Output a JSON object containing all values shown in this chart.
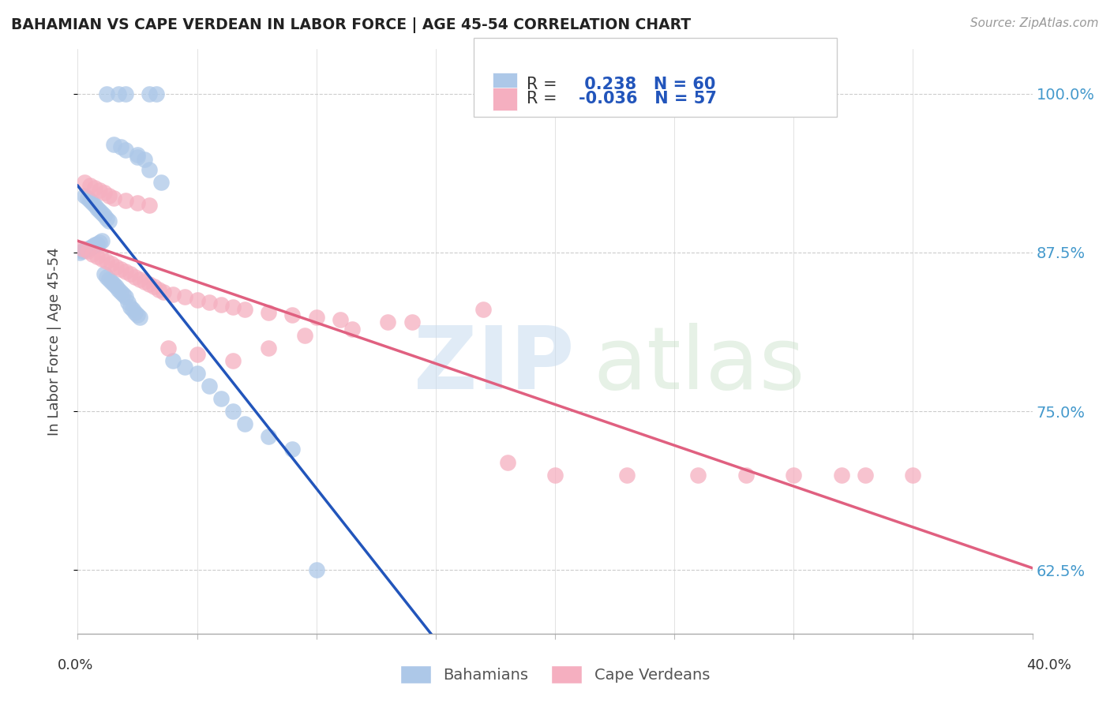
{
  "title": "BAHAMIAN VS CAPE VERDEAN IN LABOR FORCE | AGE 45-54 CORRELATION CHART",
  "source": "Source: ZipAtlas.com",
  "ylabel": "In Labor Force | Age 45-54",
  "ytick_labels": [
    "62.5%",
    "75.0%",
    "87.5%",
    "100.0%"
  ],
  "ytick_values": [
    0.625,
    0.75,
    0.875,
    1.0
  ],
  "xlim": [
    0.0,
    0.4
  ],
  "ylim": [
    0.575,
    1.035
  ],
  "bahamian_R": 0.238,
  "bahamian_N": 60,
  "capeverdean_R": -0.036,
  "capeverdean_N": 57,
  "bahamian_color": "#adc8e8",
  "capeverdean_color": "#f5afc0",
  "bahamian_line_color": "#2255bb",
  "capeverdean_line_color": "#e06080",
  "legend_label_bahamian": "Bahamians",
  "legend_label_capeverdean": "Cape Verdeans",
  "bah_x": [
    0.001,
    0.002,
    0.003,
    0.004,
    0.005,
    0.006,
    0.007,
    0.008,
    0.009,
    0.01,
    0.011,
    0.012,
    0.013,
    0.014,
    0.015,
    0.016,
    0.017,
    0.018,
    0.019,
    0.02,
    0.021,
    0.022,
    0.023,
    0.024,
    0.025,
    0.026,
    0.003,
    0.004,
    0.005,
    0.006,
    0.007,
    0.008,
    0.009,
    0.01,
    0.011,
    0.012,
    0.013,
    0.025,
    0.03,
    0.035,
    0.012,
    0.017,
    0.02,
    0.03,
    0.033,
    0.015,
    0.018,
    0.02,
    0.025,
    0.028,
    0.04,
    0.045,
    0.05,
    0.055,
    0.06,
    0.065,
    0.07,
    0.08,
    0.09,
    0.1
  ],
  "bah_y": [
    0.875,
    0.876,
    0.877,
    0.878,
    0.879,
    0.88,
    0.881,
    0.882,
    0.883,
    0.884,
    0.858,
    0.856,
    0.854,
    0.852,
    0.85,
    0.848,
    0.846,
    0.844,
    0.842,
    0.84,
    0.836,
    0.832,
    0.83,
    0.828,
    0.826,
    0.824,
    0.92,
    0.918,
    0.916,
    0.914,
    0.912,
    0.91,
    0.908,
    0.906,
    0.904,
    0.902,
    0.9,
    0.95,
    0.94,
    0.93,
    1.0,
    1.0,
    1.0,
    1.0,
    1.0,
    0.96,
    0.958,
    0.956,
    0.952,
    0.948,
    0.79,
    0.785,
    0.78,
    0.77,
    0.76,
    0.75,
    0.74,
    0.73,
    0.72,
    0.625
  ],
  "cap_x": [
    0.002,
    0.004,
    0.006,
    0.008,
    0.01,
    0.012,
    0.014,
    0.016,
    0.018,
    0.02,
    0.022,
    0.024,
    0.026,
    0.028,
    0.03,
    0.032,
    0.034,
    0.036,
    0.04,
    0.045,
    0.05,
    0.055,
    0.06,
    0.065,
    0.07,
    0.08,
    0.09,
    0.1,
    0.11,
    0.13,
    0.003,
    0.005,
    0.007,
    0.009,
    0.011,
    0.013,
    0.015,
    0.02,
    0.025,
    0.03,
    0.038,
    0.05,
    0.065,
    0.08,
    0.095,
    0.115,
    0.14,
    0.17,
    0.2,
    0.23,
    0.26,
    0.3,
    0.33,
    0.35,
    0.18,
    0.28,
    0.32
  ],
  "cap_y": [
    0.878,
    0.876,
    0.874,
    0.872,
    0.87,
    0.868,
    0.866,
    0.864,
    0.862,
    0.86,
    0.858,
    0.856,
    0.854,
    0.852,
    0.85,
    0.848,
    0.846,
    0.844,
    0.842,
    0.84,
    0.838,
    0.836,
    0.834,
    0.832,
    0.83,
    0.828,
    0.826,
    0.824,
    0.822,
    0.82,
    0.93,
    0.928,
    0.926,
    0.924,
    0.922,
    0.92,
    0.918,
    0.916,
    0.914,
    0.912,
    0.8,
    0.795,
    0.79,
    0.8,
    0.81,
    0.815,
    0.82,
    0.83,
    0.7,
    0.7,
    0.7,
    0.7,
    0.7,
    0.7,
    0.71,
    0.7,
    0.7
  ]
}
